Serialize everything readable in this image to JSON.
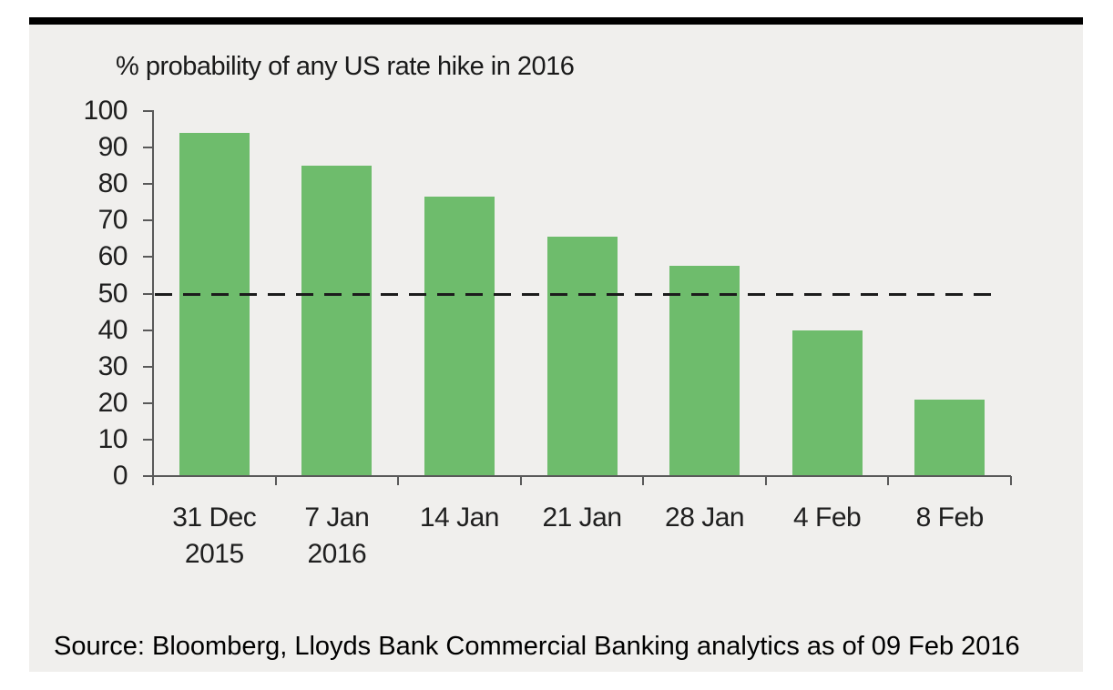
{
  "page": {
    "background": "#ffffff",
    "panel_background": "#f0efed",
    "top_bar_color": "#000000",
    "text_color": "#1f1f1f"
  },
  "chart_data": {
    "type": "bar",
    "title": "% probability of any US rate hike in 2016",
    "categories": [
      "31 Dec\n2015",
      "7 Jan\n2016",
      "14 Jan",
      "21 Jan",
      "28 Jan",
      "4 Feb",
      "8 Feb"
    ],
    "values": [
      94,
      85,
      76.5,
      65.5,
      57.5,
      40,
      21
    ],
    "xlabel": "",
    "ylabel": "",
    "ylim": [
      0,
      100
    ],
    "y_ticks": [
      0,
      10,
      20,
      30,
      40,
      50,
      60,
      70,
      80,
      90,
      100
    ],
    "reference_line": {
      "value": 50,
      "style": "dashed",
      "color": "#1c1c1c"
    },
    "bar_color": "#6ebc6c",
    "axis_color": "#595959",
    "grid": false,
    "legend": false
  },
  "footer": {
    "source": "Source: Bloomberg, Lloyds Bank Commercial Banking analytics as of 09 Feb 2016"
  }
}
